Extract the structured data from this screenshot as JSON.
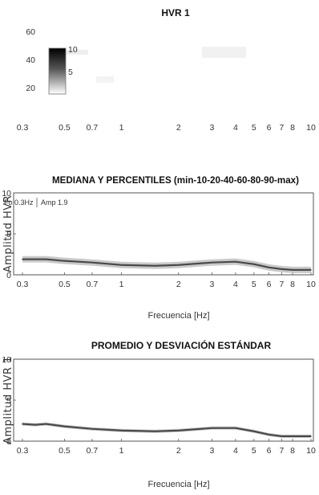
{
  "colors": {
    "axis": "#555555",
    "curve": "#4a4a4a",
    "band": "#bdbdbd",
    "band_dark": "#9a9a9a"
  },
  "chart_data": [
    {
      "type": "heatmap",
      "title": "HVR 1",
      "x_scale": "log",
      "xlim": [
        0.3,
        10
      ],
      "x_ticks": [
        "0.3",
        "0.5",
        "0.7",
        "1",
        "2",
        "3",
        "4",
        "5",
        "6",
        "7",
        "8",
        "10"
      ],
      "y_ticks": [
        "20",
        "40",
        "60"
      ],
      "ylim": [
        10,
        65
      ],
      "colorbar": {
        "ticks": [
          "5",
          "10"
        ],
        "range": [
          0,
          10
        ]
      }
    },
    {
      "type": "line",
      "title": "MEDIANA Y PERCENTILES (min-10-20-40-60-80-90-max)",
      "xlabel": "Frecuencia [Hz]",
      "ylabel": "Amplitud HVR",
      "x_scale": "log",
      "xlim": [
        0.3,
        10
      ],
      "ylim": [
        0,
        10
      ],
      "x_ticks": [
        "0.3",
        "0.5",
        "0.7",
        "1",
        "2",
        "3",
        "4",
        "5",
        "6",
        "7",
        "8",
        "10"
      ],
      "y_ticks": [
        "0",
        "5",
        "10"
      ],
      "annotations": {
        "fo": "Fo 0.3Hz",
        "amp": "Amp 1.9"
      },
      "series": [
        {
          "x": [
            0.3,
            0.4,
            0.5,
            0.7,
            1,
            1.5,
            2,
            3,
            4,
            5,
            6,
            7,
            8,
            10
          ],
          "y": [
            1.9,
            1.9,
            1.7,
            1.5,
            1.2,
            1.1,
            1.2,
            1.5,
            1.6,
            1.3,
            0.9,
            0.7,
            0.6,
            0.6
          ]
        }
      ]
    },
    {
      "type": "line",
      "title": "PROMEDIO Y DESVIACIÓN ESTÁNDAR",
      "xlabel": "Frecuencia [Hz]",
      "ylabel": "Amplitud HVR 1",
      "x_scale": "log",
      "xlim": [
        0.3,
        10
      ],
      "ylim": [
        0,
        10
      ],
      "x_ticks": [
        "0.3",
        "0.5",
        "0.7",
        "1",
        "2",
        "3",
        "4",
        "5",
        "6",
        "7",
        "8",
        "10"
      ],
      "y_ticks": [
        "0",
        "5",
        "10"
      ],
      "series": [
        {
          "x": [
            0.3,
            0.35,
            0.4,
            0.5,
            0.7,
            1,
            1.5,
            2,
            3,
            4,
            5,
            6,
            7,
            8,
            10
          ],
          "y": [
            2.1,
            2.0,
            2.1,
            1.8,
            1.5,
            1.3,
            1.2,
            1.3,
            1.6,
            1.6,
            1.2,
            0.8,
            0.6,
            0.6,
            0.6
          ]
        }
      ]
    }
  ]
}
